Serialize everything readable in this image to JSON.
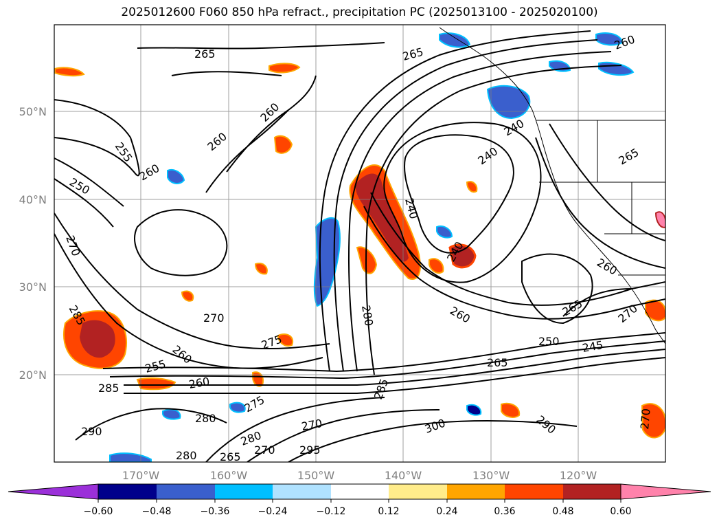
{
  "title": "2025012600 F060 850 hPa refract., precipitation PC (2025013100 - 2025020100)",
  "map": {
    "lat_labels": [
      "50°N",
      "40°N",
      "30°N",
      "20°N"
    ],
    "lon_labels": [
      "170°W",
      "160°W",
      "150°W",
      "140°W",
      "130°W",
      "120°W"
    ],
    "contour_labels": [
      "265",
      "265",
      "260",
      "260",
      "260",
      "255",
      "250",
      "260",
      "270",
      "240",
      "240",
      "240",
      "250",
      "245",
      "260",
      "265",
      "280",
      "285",
      "270",
      "275",
      "260",
      "255",
      "285",
      "260",
      "270",
      "265",
      "280",
      "275",
      "290",
      "285",
      "300",
      "270",
      "295",
      "280",
      "265",
      "280",
      "270",
      "290",
      "240",
      "260",
      "265",
      "270"
    ],
    "colors": {
      "contour": "#000000",
      "grid": "#808080",
      "coast": "#000000"
    }
  },
  "colorbar": {
    "tick_labels": [
      "−0.60",
      "−0.48",
      "−0.36",
      "−0.24",
      "−0.12",
      "0.12",
      "0.24",
      "0.36",
      "0.48",
      "0.60"
    ],
    "colors": [
      "#9b30d9",
      "#00008b",
      "#3a5fcd",
      "#00bfff",
      "#b0e2ff",
      "#ffffff",
      "#ffec8b",
      "#ffa500",
      "#ff4500",
      "#b22222",
      "#ff82ab"
    ]
  }
}
